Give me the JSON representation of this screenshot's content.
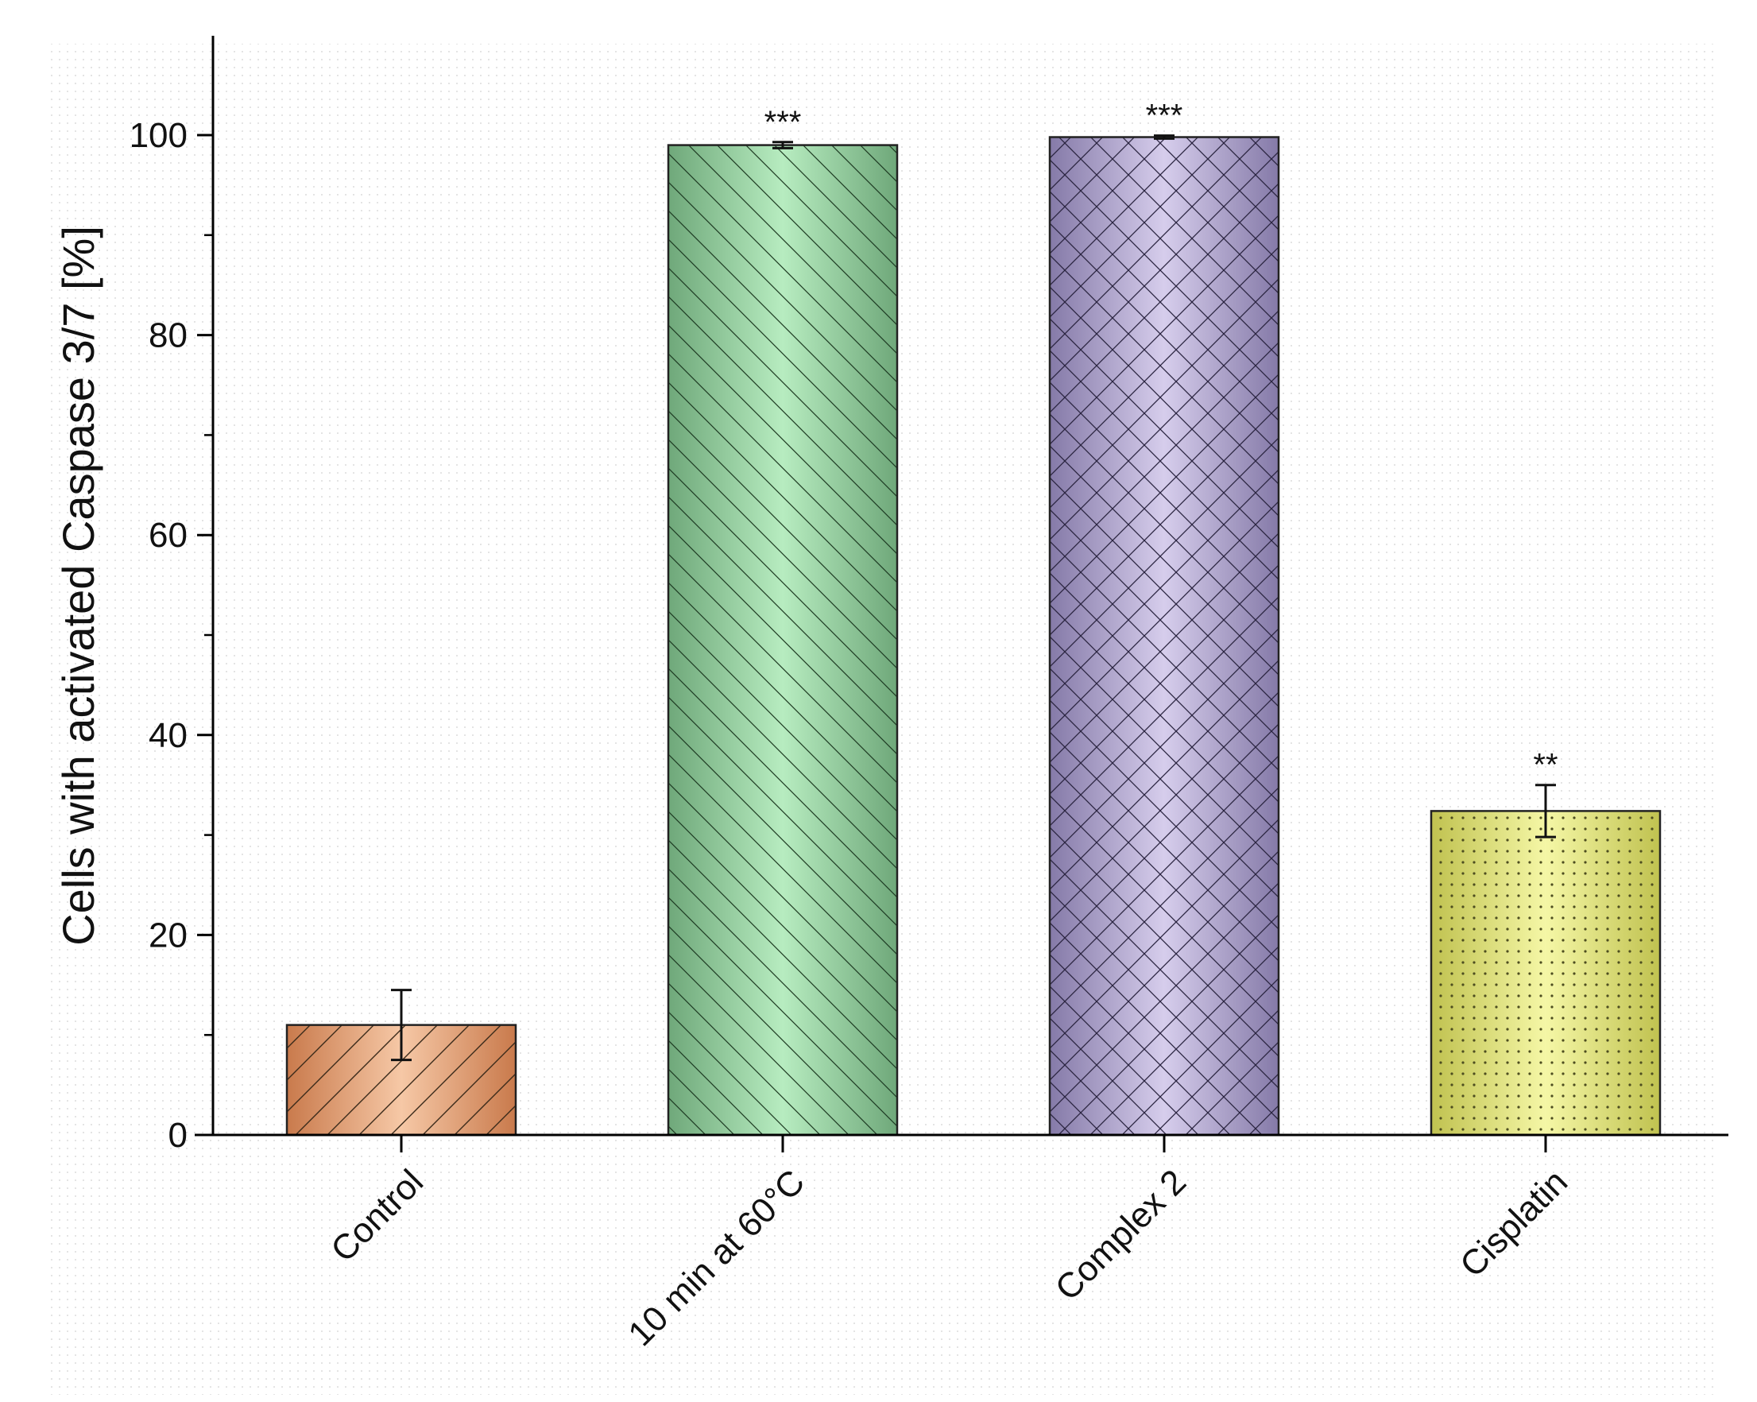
{
  "chart_data": {
    "type": "bar",
    "title": "",
    "xlabel": "",
    "ylabel": "Cells with activated Caspase 3/7 [%]",
    "ylim": [
      0,
      110
    ],
    "y_ticks": [
      0,
      20,
      40,
      60,
      80,
      100
    ],
    "y_tick_labels": [
      "0",
      "20",
      "40",
      "60",
      "80",
      "100"
    ],
    "grid": false,
    "legend": "none",
    "categories": [
      "Control",
      "10 min at 60°C",
      "Complex 2",
      "Cisplatin"
    ],
    "values": [
      11,
      99,
      99.8,
      32.4
    ],
    "errors": [
      3.5,
      0.3,
      0.15,
      2.6
    ],
    "significance": [
      "",
      "***",
      "***",
      "**"
    ],
    "colors": [
      "#e8a57c",
      "#9fd8a8",
      "#b3a6d2",
      "#e6e87a"
    ],
    "patterns": [
      "diagonal-up",
      "diagonal-down",
      "crosshatch",
      "dots"
    ]
  }
}
